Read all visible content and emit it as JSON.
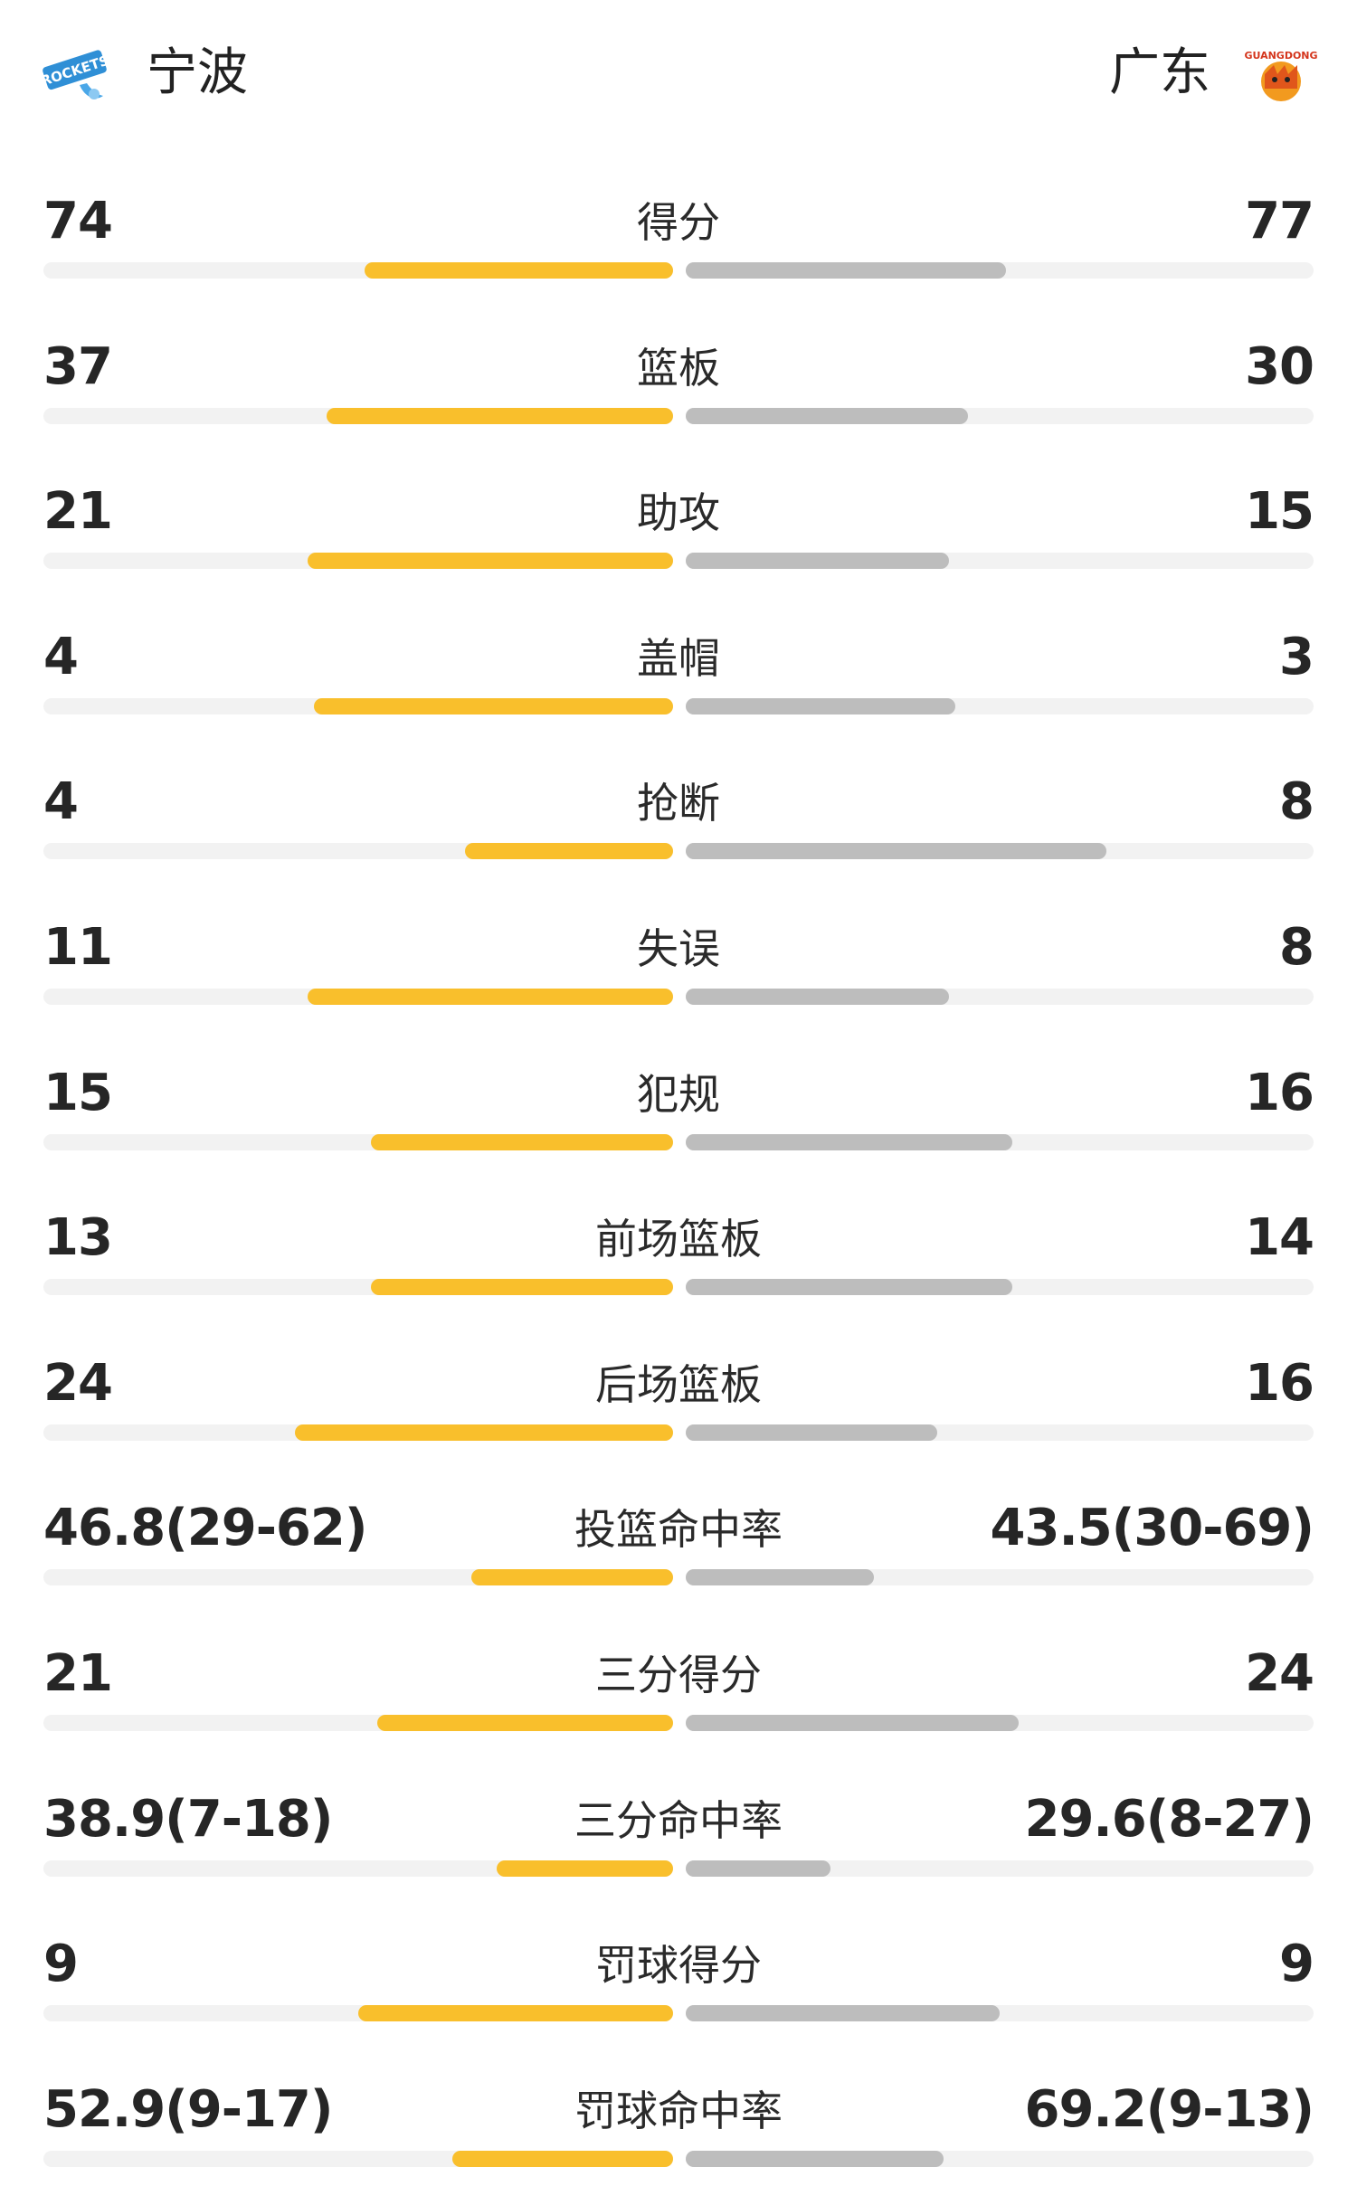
{
  "header": {
    "home_team": "宁波",
    "away_team": "广东",
    "home_logo_icon": "ningbo-rockets-logo",
    "away_logo_icon": "guangdong-tigers-logo"
  },
  "colors": {
    "home_bar": "#f9bf2c",
    "away_bar": "#bdbdbd",
    "track": "#f2f2f2"
  },
  "stats": [
    {
      "label": "得分",
      "home": "74",
      "away": "77",
      "home_fill": 0.49,
      "away_fill": 0.51
    },
    {
      "label": "篮板",
      "home": "37",
      "away": "30",
      "home_fill": 0.55,
      "away_fill": 0.45
    },
    {
      "label": "助攻",
      "home": "21",
      "away": "15",
      "home_fill": 0.58,
      "away_fill": 0.42
    },
    {
      "label": "盖帽",
      "home": "4",
      "away": "3",
      "home_fill": 0.57,
      "away_fill": 0.43
    },
    {
      "label": "抢断",
      "home": "4",
      "away": "8",
      "home_fill": 0.33,
      "away_fill": 0.67
    },
    {
      "label": "失误",
      "home": "11",
      "away": "8",
      "home_fill": 0.58,
      "away_fill": 0.42
    },
    {
      "label": "犯规",
      "home": "15",
      "away": "16",
      "home_fill": 0.48,
      "away_fill": 0.52
    },
    {
      "label": "前场篮板",
      "home": "13",
      "away": "14",
      "home_fill": 0.48,
      "away_fill": 0.52
    },
    {
      "label": "后场篮板",
      "home": "24",
      "away": "16",
      "home_fill": 0.6,
      "away_fill": 0.4
    },
    {
      "label": "投篮命中率",
      "home": "46.8(29-62)",
      "away": "43.5(30-69)",
      "home_fill": 0.32,
      "away_fill": 0.3
    },
    {
      "label": "三分得分",
      "home": "21",
      "away": "24",
      "home_fill": 0.47,
      "away_fill": 0.53
    },
    {
      "label": "三分命中率",
      "home": "38.9(7-18)",
      "away": "29.6(8-27)",
      "home_fill": 0.28,
      "away_fill": 0.23
    },
    {
      "label": "罚球得分",
      "home": "9",
      "away": "9",
      "home_fill": 0.5,
      "away_fill": 0.5
    },
    {
      "label": "罚球命中率",
      "home": "52.9(9-17)",
      "away": "69.2(9-13)",
      "home_fill": 0.35,
      "away_fill": 0.41
    }
  ]
}
